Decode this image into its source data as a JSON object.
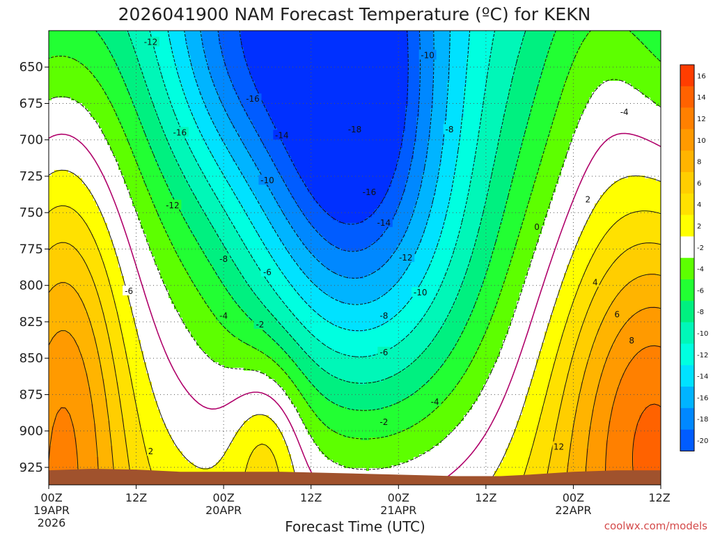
{
  "chart_data": {
    "type": "heatmap",
    "title": "2026041900 NAM Forecast Temperature (ºC) for KEKN",
    "xlabel": "Forecast Time (UTC)",
    "ylabel": "",
    "y_axis": {
      "ticks": [
        "650",
        "675",
        "700",
        "725",
        "750",
        "775",
        "800",
        "825",
        "850",
        "875",
        "900",
        "925"
      ],
      "range": [
        625,
        937
      ],
      "inverted": true
    },
    "x_axis": {
      "ticks": [
        {
          "hour": 0,
          "label": "00Z",
          "sub": "19APR",
          "sub2": "2026"
        },
        {
          "hour": 12,
          "label": "12Z",
          "sub": "",
          "sub2": ""
        },
        {
          "hour": 24,
          "label": "00Z",
          "sub": "20APR",
          "sub2": ""
        },
        {
          "hour": 36,
          "label": "12Z",
          "sub": "",
          "sub2": ""
        },
        {
          "hour": 48,
          "label": "00Z",
          "sub": "21APR",
          "sub2": ""
        },
        {
          "hour": 60,
          "label": "12Z",
          "sub": "",
          "sub2": ""
        },
        {
          "hour": 72,
          "label": "00Z",
          "sub": "22APR",
          "sub2": ""
        },
        {
          "hour": 84,
          "label": "12Z",
          "sub": "",
          "sub2": ""
        }
      ],
      "range": [
        0,
        84
      ]
    },
    "grid": true,
    "colorbar": {
      "placement": "right",
      "levels": [
        {
          "label": "16",
          "color": "#ff3d00"
        },
        {
          "label": "14",
          "color": "#ff6200"
        },
        {
          "label": "12",
          "color": "#ff8000"
        },
        {
          "label": "10",
          "color": "#ff9a00"
        },
        {
          "label": "8",
          "color": "#ffb400"
        },
        {
          "label": "6",
          "color": "#ffce00"
        },
        {
          "label": "4",
          "color": "#ffe100"
        },
        {
          "label": "2",
          "color": "#ffff00"
        },
        {
          "label": "-2",
          "color": "#ffffff"
        },
        {
          "label": "-4",
          "color": "#5dff00"
        },
        {
          "label": "-6",
          "color": "#22ff33"
        },
        {
          "label": "-8",
          "color": "#00f080"
        },
        {
          "label": "-10",
          "color": "#00f7b8"
        },
        {
          "label": "-12",
          "color": "#00ffe0"
        },
        {
          "label": "-14",
          "color": "#00e2ff"
        },
        {
          "label": "-16",
          "color": "#00b4ff"
        },
        {
          "label": "-18",
          "color": "#0088ff"
        },
        {
          "label": "-20",
          "color": "#005cff"
        }
      ],
      "below_color": "#0030ff"
    },
    "terrain_color": "#a0522d",
    "zero_contour_color": "#b0006a",
    "contour_labels": [
      {
        "t": 14,
        "p": 633,
        "v": "-12"
      },
      {
        "t": 28,
        "p": 672,
        "v": "-16"
      },
      {
        "t": 18,
        "p": 695,
        "v": "-16"
      },
      {
        "t": 52,
        "p": 642,
        "v": "-10"
      },
      {
        "t": 32,
        "p": 697,
        "v": "-14"
      },
      {
        "t": 42,
        "p": 693,
        "v": "-18"
      },
      {
        "t": 55,
        "p": 693,
        "v": "-8"
      },
      {
        "t": 30,
        "p": 728,
        "v": "-10"
      },
      {
        "t": 44,
        "p": 736,
        "v": "-16"
      },
      {
        "t": 17,
        "p": 745,
        "v": "-12"
      },
      {
        "t": 46,
        "p": 757,
        "v": "-14"
      },
      {
        "t": 24,
        "p": 782,
        "v": "-8"
      },
      {
        "t": 30,
        "p": 791,
        "v": "-6"
      },
      {
        "t": 49,
        "p": 781,
        "v": "-12"
      },
      {
        "t": 11,
        "p": 804,
        "v": "-6"
      },
      {
        "t": 51,
        "p": 805,
        "v": "-10"
      },
      {
        "t": 24,
        "p": 821,
        "v": "-4"
      },
      {
        "t": 29,
        "p": 827,
        "v": "-2"
      },
      {
        "t": 46,
        "p": 821,
        "v": "-8"
      },
      {
        "t": 46,
        "p": 846,
        "v": "-6"
      },
      {
        "t": 53,
        "p": 880,
        "v": "-4"
      },
      {
        "t": 46,
        "p": 894,
        "v": "-2"
      },
      {
        "t": 14,
        "p": 914,
        "v": "2"
      },
      {
        "t": 67,
        "p": 760,
        "v": "0"
      },
      {
        "t": 74,
        "p": 741,
        "v": "2"
      },
      {
        "t": 75,
        "p": 798,
        "v": "4"
      },
      {
        "t": 78,
        "p": 820,
        "v": "6"
      },
      {
        "t": 80,
        "p": 838,
        "v": "8"
      },
      {
        "t": 70,
        "p": 911,
        "v": "12"
      },
      {
        "t": 79,
        "p": 681,
        "v": "-4"
      }
    ],
    "credit": "coolwx.com/models"
  }
}
